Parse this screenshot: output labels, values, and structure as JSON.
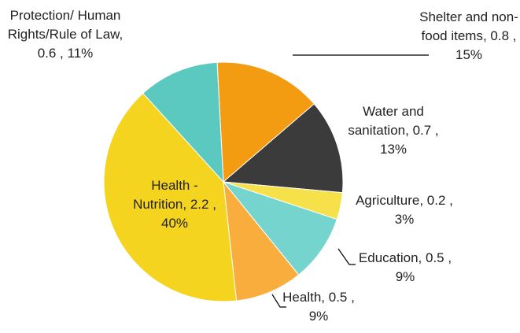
{
  "chart_data": {
    "type": "pie",
    "categories": [
      "Shelter and non-food items",
      "Water and sanitation",
      "Agriculture",
      "Education",
      "Health",
      "Health - Nutrition",
      "Protection/ Human Rights/Rule of Law"
    ],
    "values": [
      0.8,
      0.7,
      0.2,
      0.5,
      0.5,
      2.2,
      0.6
    ],
    "value_labels": [
      ", 0.8 , 15%",
      ", 0.7 , 13%",
      ", 0.2 , 3%",
      ", 0.5 , 9%",
      ", 0.5 , 9%",
      ", 2.2 , 40%",
      ", 0.6 , 11%"
    ],
    "colors": [
      "#f39c12",
      "#3b3b3b",
      "#f7e14a",
      "#76d4cf",
      "#f8ad3c",
      "#f5d420",
      "#5cc9c1"
    ]
  }
}
